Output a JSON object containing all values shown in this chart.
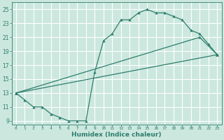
{
  "title": "",
  "xlabel": "Humidex (Indice chaleur)",
  "ylabel": "",
  "background_color": "#cce8de",
  "grid_color": "#ffffff",
  "line_color": "#2e7d6e",
  "xlim": [
    -0.5,
    23.5
  ],
  "ylim": [
    8.5,
    26
  ],
  "xticks": [
    0,
    1,
    2,
    3,
    4,
    5,
    6,
    7,
    8,
    9,
    10,
    11,
    12,
    13,
    14,
    15,
    16,
    17,
    18,
    19,
    20,
    21,
    22,
    23
  ],
  "yticks": [
    9,
    11,
    13,
    15,
    17,
    19,
    21,
    23,
    25
  ],
  "line1_x": [
    0,
    1,
    2,
    3,
    4,
    5,
    6,
    7,
    8,
    9,
    10,
    11,
    12,
    13,
    14,
    15,
    16,
    17,
    18,
    19,
    20,
    21,
    22,
    23
  ],
  "line1_y": [
    13,
    12,
    11,
    11,
    10,
    9.5,
    9,
    9,
    9,
    16,
    20.5,
    21.5,
    23.5,
    23.5,
    24.5,
    25,
    24.5,
    24.5,
    24,
    23.5,
    22,
    21.5,
    20,
    18.5
  ],
  "line2_x": [
    0,
    23
  ],
  "line2_y": [
    13,
    18.5
  ],
  "line3_x": [
    0,
    21,
    23
  ],
  "line3_y": [
    13,
    21,
    18.5
  ],
  "marker_size": 2.5,
  "linewidth": 0.9
}
